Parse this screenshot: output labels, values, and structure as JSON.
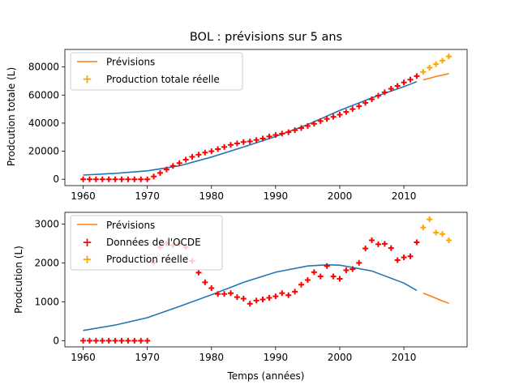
{
  "chart_data": [
    {
      "type": "line",
      "title": "BOL : prévisions sur 5 ans",
      "xlabel": "",
      "ylabel": "Prodcution totale (L)",
      "xlim": [
        1957.15,
        2019.85
      ],
      "ylim": [
        -4500,
        92500
      ],
      "xticks": [
        "1960",
        "1970",
        "1980",
        "1990",
        "2000",
        "2010"
      ],
      "yticks": [
        "0",
        "20000",
        "40000",
        "60000",
        "80000"
      ],
      "legend_position": "top-left",
      "series": [
        {
          "name": "",
          "style": "line",
          "color": "#1f77b4",
          "x": [
            1960,
            1965,
            1970,
            1975,
            1980,
            1985,
            1990,
            1995,
            2000,
            2005,
            2010,
            2012
          ],
          "y": [
            3000,
            4200,
            6000,
            9600,
            15800,
            23000,
            30500,
            39000,
            49000,
            58000,
            66000,
            69500
          ]
        },
        {
          "name": "Prévisions",
          "style": "line",
          "color": "#ff7f0e",
          "x": [
            2013,
            2014,
            2015,
            2016,
            2017
          ],
          "y": [
            70800,
            72000,
            73200,
            74200,
            75300
          ]
        },
        {
          "name": "",
          "style": "marker",
          "color": "#ff0000",
          "x": [
            1960,
            1961,
            1962,
            1963,
            1964,
            1965,
            1966,
            1967,
            1968,
            1969,
            1970,
            1971,
            1972,
            1973,
            1974,
            1975,
            1976,
            1977,
            1978,
            1979,
            1980,
            1981,
            1982,
            1983,
            1984,
            1985,
            1986,
            1987,
            1988,
            1989,
            1990,
            1991,
            1992,
            1993,
            1994,
            1995,
            1996,
            1997,
            1998,
            1999,
            2000,
            2001,
            2002,
            2003,
            2004,
            2005,
            2006,
            2007,
            2008,
            2009,
            2010,
            2011,
            2012
          ],
          "y": [
            0,
            0,
            0,
            0,
            0,
            0,
            0,
            0,
            0,
            0,
            0,
            2000,
            4500,
            7000,
            9500,
            11500,
            14000,
            16000,
            17500,
            19000,
            20000,
            21500,
            23000,
            24500,
            25500,
            26500,
            27000,
            28000,
            29000,
            30500,
            31500,
            32500,
            33500,
            35000,
            36500,
            38000,
            39500,
            41500,
            43000,
            44500,
            46000,
            48000,
            50000,
            52000,
            54500,
            57000,
            59500,
            62000,
            64500,
            66500,
            69000,
            71000,
            73500
          ]
        },
        {
          "name": "Production totale réelle",
          "style": "marker",
          "color": "#ffa500",
          "x": [
            2013,
            2014,
            2015,
            2016,
            2017
          ],
          "y": [
            76500,
            79500,
            82000,
            84500,
            87500
          ]
        }
      ]
    },
    {
      "type": "line",
      "title": "",
      "xlabel": "Temps (années)",
      "ylabel": "Prodcution (L)",
      "xlim": [
        1957.15,
        2019.85
      ],
      "ylim": [
        -160,
        3300
      ],
      "xticks": [
        "1960",
        "1970",
        "1980",
        "1990",
        "2000",
        "2010"
      ],
      "yticks": [
        "0",
        "1000",
        "2000",
        "3000"
      ],
      "legend_position": "top-left",
      "series": [
        {
          "name": "",
          "style": "line",
          "color": "#1f77b4",
          "x": [
            1960,
            1965,
            1970,
            1975,
            1980,
            1985,
            1990,
            1995,
            1998,
            2000,
            2005,
            2010,
            2012
          ],
          "y": [
            260,
            400,
            590,
            880,
            1180,
            1500,
            1760,
            1920,
            1950,
            1940,
            1790,
            1480,
            1290
          ]
        },
        {
          "name": "Prévisions",
          "style": "line",
          "color": "#ff7f0e",
          "x": [
            2013,
            2014,
            2015,
            2016,
            2017
          ],
          "y": [
            1220,
            1160,
            1090,
            1020,
            960
          ]
        },
        {
          "name": "Données de l'OCDE",
          "style": "marker",
          "color": "#ff0000",
          "x": [
            1960,
            1961,
            1962,
            1963,
            1964,
            1965,
            1966,
            1967,
            1968,
            1969,
            1970,
            1971,
            1972,
            1973,
            1974,
            1975,
            1976,
            1977,
            1978,
            1979,
            1980,
            1981,
            1982,
            1983,
            1984,
            1985,
            1986,
            1987,
            1988,
            1989,
            1990,
            1991,
            1992,
            1993,
            1994,
            1995,
            1996,
            1997,
            1998,
            1999,
            2000,
            2001,
            2002,
            2003,
            2004,
            2005,
            2006,
            2007,
            2008,
            2009,
            2010,
            2011,
            2012
          ],
          "y": [
            0,
            0,
            0,
            0,
            0,
            0,
            0,
            0,
            0,
            0,
            0,
            2000,
            2400,
            2500,
            2450,
            2500,
            2400,
            2050,
            1750,
            1500,
            1350,
            1200,
            1200,
            1220,
            1120,
            1080,
            950,
            1030,
            1060,
            1100,
            1140,
            1220,
            1170,
            1260,
            1440,
            1560,
            1760,
            1650,
            1920,
            1650,
            1590,
            1810,
            1840,
            2000,
            2370,
            2580,
            2480,
            2490,
            2380,
            2070,
            2140,
            2170,
            2530
          ]
        },
        {
          "name": "Production réelle",
          "style": "marker",
          "color": "#ffa500",
          "x": [
            2013,
            2014,
            2015,
            2016,
            2017
          ],
          "y": [
            2910,
            3120,
            2780,
            2740,
            2580
          ]
        }
      ]
    }
  ]
}
